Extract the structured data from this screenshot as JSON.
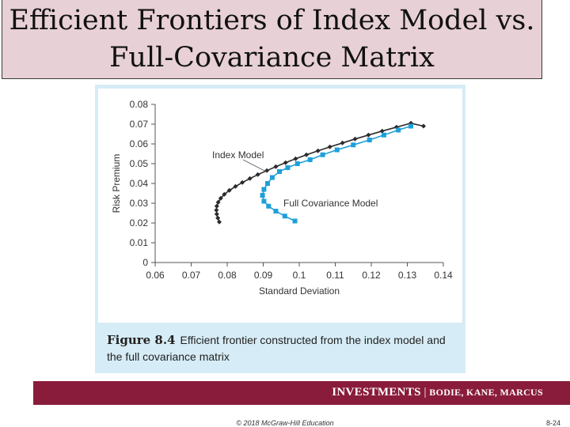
{
  "slide": {
    "title_line1": "Efficient Frontiers of Index Model vs.",
    "title_line2": "Full-Covariance Matrix",
    "footer_publication": "INVESTMENTS",
    "footer_separator": " | ",
    "footer_authors": "BODIE, KANE, MARCUS",
    "copyright": "© 2018 McGraw-Hill Education",
    "slide_number": "8-24"
  },
  "figure": {
    "label": "Figure 8.4",
    "caption": "Efficient frontier constructed from the index model and the full covariance matrix"
  },
  "chart_data": {
    "type": "line",
    "xlabel": "Standard Deviation",
    "ylabel": "Risk Premium",
    "xlim": [
      0.06,
      0.14
    ],
    "ylim": [
      0,
      0.08
    ],
    "x_ticks": [
      "0.06",
      "0.07",
      "0.08",
      "0.09",
      "0.1",
      "0.11",
      "0.12",
      "0.13",
      "0.14"
    ],
    "y_ticks": [
      "0",
      "0.01",
      "0.02",
      "0.03",
      "0.04",
      "0.05",
      "0.06",
      "0.07",
      "0.08"
    ],
    "grid": false,
    "series": [
      {
        "name": "Index Model",
        "color": "#2b2b2b",
        "marker": "diamond",
        "points": [
          [
            0.0778,
            0.0205
          ],
          [
            0.0774,
            0.0225
          ],
          [
            0.0771,
            0.0245
          ],
          [
            0.077,
            0.0265
          ],
          [
            0.0771,
            0.0285
          ],
          [
            0.0775,
            0.0305
          ],
          [
            0.0782,
            0.0325
          ],
          [
            0.0792,
            0.0345
          ],
          [
            0.0806,
            0.0365
          ],
          [
            0.0823,
            0.0385
          ],
          [
            0.0842,
            0.0405
          ],
          [
            0.0863,
            0.0425
          ],
          [
            0.0885,
            0.0445
          ],
          [
            0.091,
            0.0465
          ],
          [
            0.0935,
            0.0485
          ],
          [
            0.0962,
            0.0505
          ],
          [
            0.099,
            0.0525
          ],
          [
            0.102,
            0.0545
          ],
          [
            0.1052,
            0.0565
          ],
          [
            0.1085,
            0.0585
          ],
          [
            0.112,
            0.0605
          ],
          [
            0.1155,
            0.0625
          ],
          [
            0.1192,
            0.0645
          ],
          [
            0.123,
            0.0665
          ],
          [
            0.127,
            0.0685
          ],
          [
            0.131,
            0.0705
          ],
          [
            0.1345,
            0.069
          ]
        ]
      },
      {
        "name": "Full Covariance Model",
        "color": "#1ea0d8",
        "marker": "square",
        "points": [
          [
            0.0988,
            0.021
          ],
          [
            0.096,
            0.0235
          ],
          [
            0.0935,
            0.026
          ],
          [
            0.0915,
            0.0285
          ],
          [
            0.0902,
            0.031
          ],
          [
            0.0898,
            0.034
          ],
          [
            0.0902,
            0.037
          ],
          [
            0.0912,
            0.04
          ],
          [
            0.0925,
            0.043
          ],
          [
            0.0945,
            0.046
          ],
          [
            0.0968,
            0.048
          ],
          [
            0.0995,
            0.05
          ],
          [
            0.103,
            0.052
          ],
          [
            0.1065,
            0.0545
          ],
          [
            0.1105,
            0.057
          ],
          [
            0.115,
            0.0595
          ],
          [
            0.1195,
            0.062
          ],
          [
            0.1235,
            0.0645
          ],
          [
            0.1275,
            0.067
          ],
          [
            0.131,
            0.069
          ]
        ]
      }
    ]
  }
}
